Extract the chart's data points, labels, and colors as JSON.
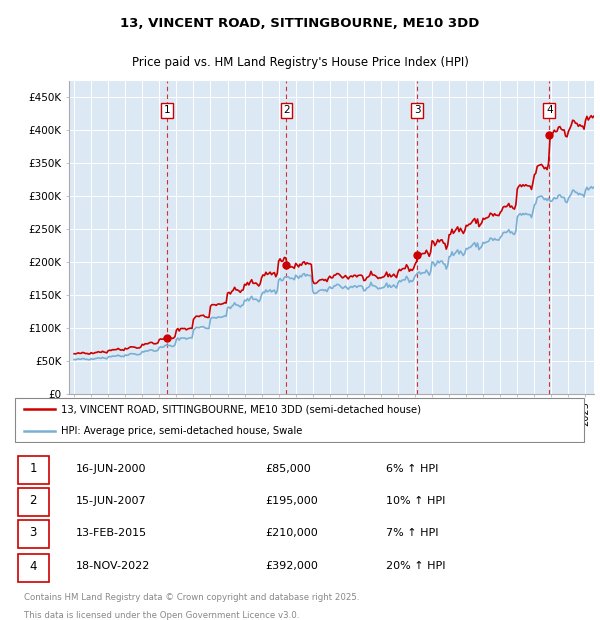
{
  "title": "13, VINCENT ROAD, SITTINGBOURNE, ME10 3DD",
  "subtitle": "Price paid vs. HM Land Registry's House Price Index (HPI)",
  "legend_line1": "13, VINCENT ROAD, SITTINGBOURNE, ME10 3DD (semi-detached house)",
  "legend_line2": "HPI: Average price, semi-detached house, Swale",
  "footer1": "Contains HM Land Registry data © Crown copyright and database right 2025.",
  "footer2": "This data is licensed under the Open Government Licence v3.0.",
  "plot_bg_color": "#dce9f5",
  "red_color": "#cc0000",
  "blue_color": "#7aafd4",
  "transactions": [
    {
      "num": 1,
      "price": 85000,
      "x_year": 2000.46
    },
    {
      "num": 2,
      "price": 195000,
      "x_year": 2007.46
    },
    {
      "num": 3,
      "price": 210000,
      "x_year": 2015.12
    },
    {
      "num": 4,
      "price": 392000,
      "x_year": 2022.88
    }
  ],
  "date_labels": [
    "16-JUN-2000",
    "15-JUN-2007",
    "13-FEB-2015",
    "18-NOV-2022"
  ],
  "price_labels": [
    "£85,000",
    "£195,000",
    "£210,000",
    "£392,000"
  ],
  "pct_labels": [
    "6% ↑ HPI",
    "10% ↑ HPI",
    "7% ↑ HPI",
    "20% ↑ HPI"
  ],
  "xmin": 1994.7,
  "xmax": 2025.5,
  "ylim": [
    0,
    475000
  ],
  "yticks": [
    0,
    50000,
    100000,
    150000,
    200000,
    250000,
    300000,
    350000,
    400000,
    450000
  ],
  "ytick_labels": [
    "£0",
    "£50K",
    "£100K",
    "£150K",
    "£200K",
    "£250K",
    "£300K",
    "£350K",
    "£400K",
    "£450K"
  ]
}
